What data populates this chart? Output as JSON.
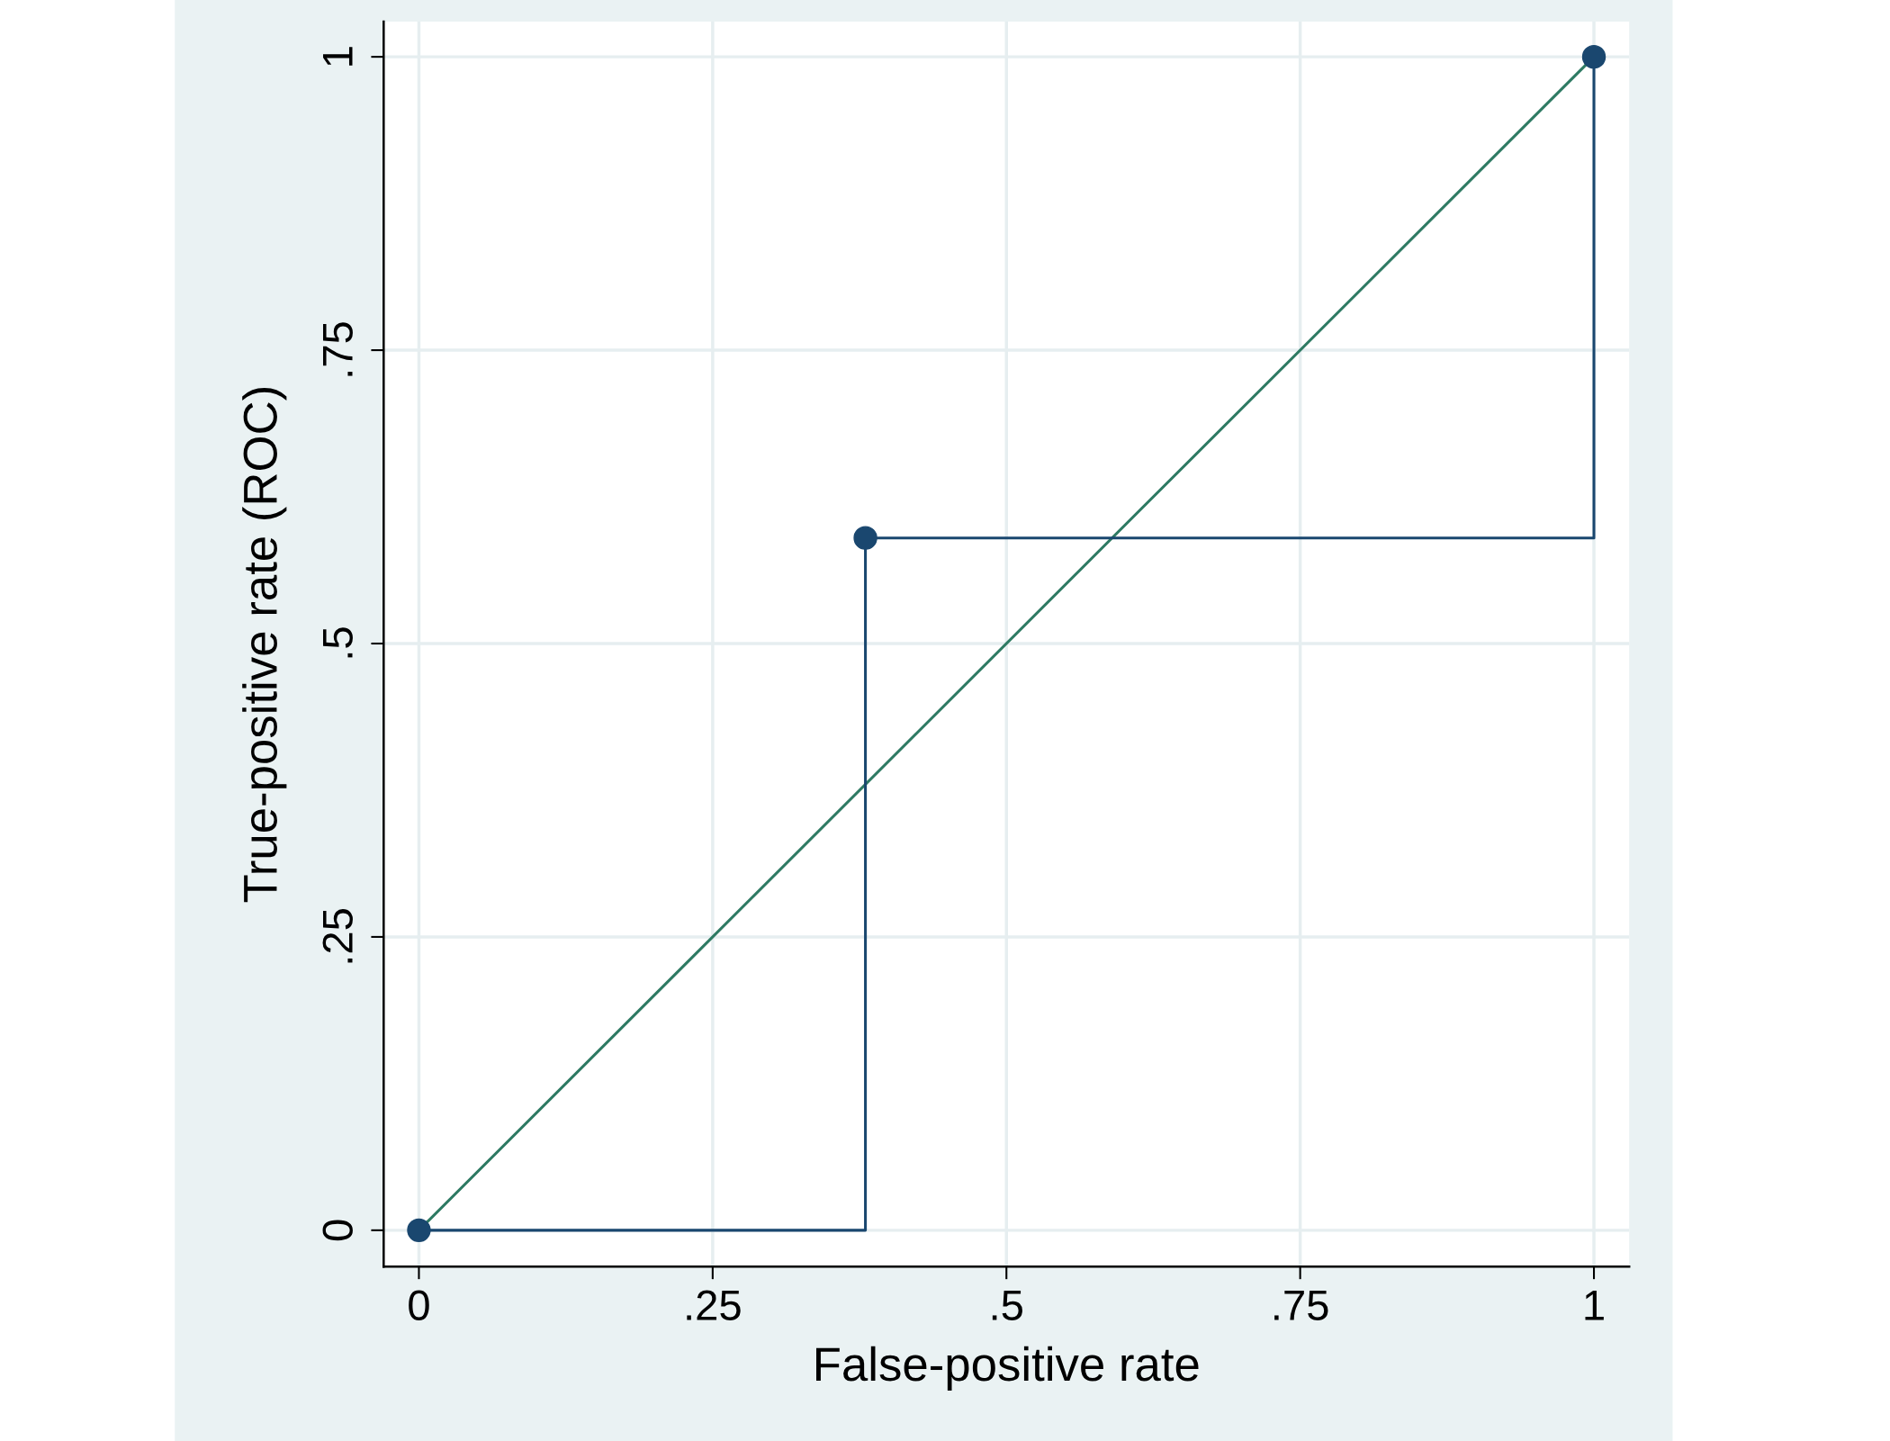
{
  "chart_data": {
    "type": "step",
    "xlabel": "False-positive rate",
    "ylabel": "True-positive rate (ROC)",
    "xlim": [
      -0.03,
      1.03
    ],
    "ylim": [
      -0.031,
      1.03
    ],
    "xticks": [
      0,
      {
        "value": 0.25,
        "label": ".25"
      },
      {
        "value": 0.5,
        "label": ".5"
      },
      {
        "value": 0.75,
        "label": ".75"
      },
      1
    ],
    "yticks": [
      0,
      {
        "value": 0.25,
        "label": ".25"
      },
      {
        "value": 0.5,
        "label": ".5"
      },
      {
        "value": 0.75,
        "label": ".75"
      },
      1
    ],
    "grid": true,
    "legend": false,
    "series": [
      {
        "color": "#1a476f",
        "marker": "circle",
        "x": [
          0,
          0.38,
          1
        ],
        "values": [
          0,
          0.59,
          1
        ]
      },
      {
        "type": "line",
        "color": "#2e7a63",
        "marker": "none",
        "x": [
          0,
          1
        ],
        "values": [
          0,
          1
        ]
      }
    ]
  }
}
